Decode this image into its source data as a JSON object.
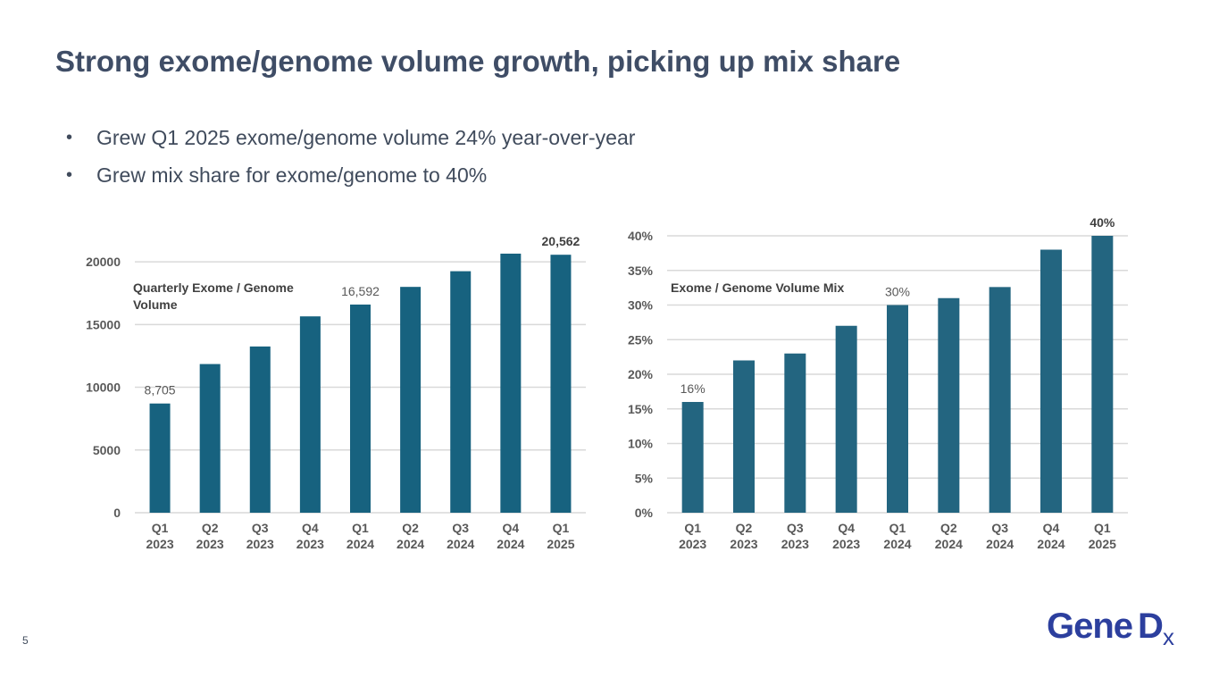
{
  "slide": {
    "title": "Strong exome/genome volume growth, picking up mix share",
    "bullets": [
      "Grew Q1 2025 exome/genome volume 24% year-over-year",
      "Grew mix share for exome/genome to 40%"
    ],
    "page_number": "5",
    "logo_text": "GeneDx"
  },
  "colors": {
    "bar_left": "#17627f",
    "bar_right": "#236580",
    "grid": "#d9d9d9",
    "axis_text": "#595959",
    "title": "#3f4d66",
    "logo": "#2c3f9e"
  },
  "chart_data": [
    {
      "type": "bar",
      "title": "Quarterly Exome / Genome Volume",
      "categories": [
        "Q1 2023",
        "Q2 2023",
        "Q3 2023",
        "Q4 2023",
        "Q1 2024",
        "Q2 2024",
        "Q3 2024",
        "Q4 2024",
        "Q1 2025"
      ],
      "values": [
        8705,
        11850,
        13250,
        15650,
        16592,
        18000,
        19250,
        20650,
        20562
      ],
      "ylim": [
        0,
        22000
      ],
      "yticks": [
        0,
        5000,
        10000,
        15000,
        20000
      ],
      "ytick_labels": [
        "0",
        "5000",
        "10000",
        "15000",
        "20000"
      ],
      "data_labels": [
        {
          "index": 0,
          "text": "8,705",
          "bold": false
        },
        {
          "index": 4,
          "text": "16,592",
          "bold": false
        },
        {
          "index": 8,
          "text": "20,562",
          "bold": true
        }
      ],
      "grid": true
    },
    {
      "type": "bar",
      "title": "Exome / Genome Volume Mix",
      "categories": [
        "Q1 2023",
        "Q2 2023",
        "Q3 2023",
        "Q4 2023",
        "Q1 2024",
        "Q2 2024",
        "Q3 2024",
        "Q4 2024",
        "Q1 2025"
      ],
      "values": [
        16,
        22,
        23,
        27,
        30,
        31,
        32.6,
        38,
        40
      ],
      "ylim": [
        0,
        40
      ],
      "yticks": [
        0,
        5,
        10,
        15,
        20,
        25,
        30,
        35,
        40
      ],
      "ytick_labels": [
        "0%",
        "5%",
        "10%",
        "15%",
        "20%",
        "25%",
        "30%",
        "35%",
        "40%"
      ],
      "data_labels": [
        {
          "index": 0,
          "text": "16%",
          "bold": false
        },
        {
          "index": 4,
          "text": "30%",
          "bold": false
        },
        {
          "index": 8,
          "text": "40%",
          "bold": true
        }
      ],
      "grid": true
    }
  ]
}
